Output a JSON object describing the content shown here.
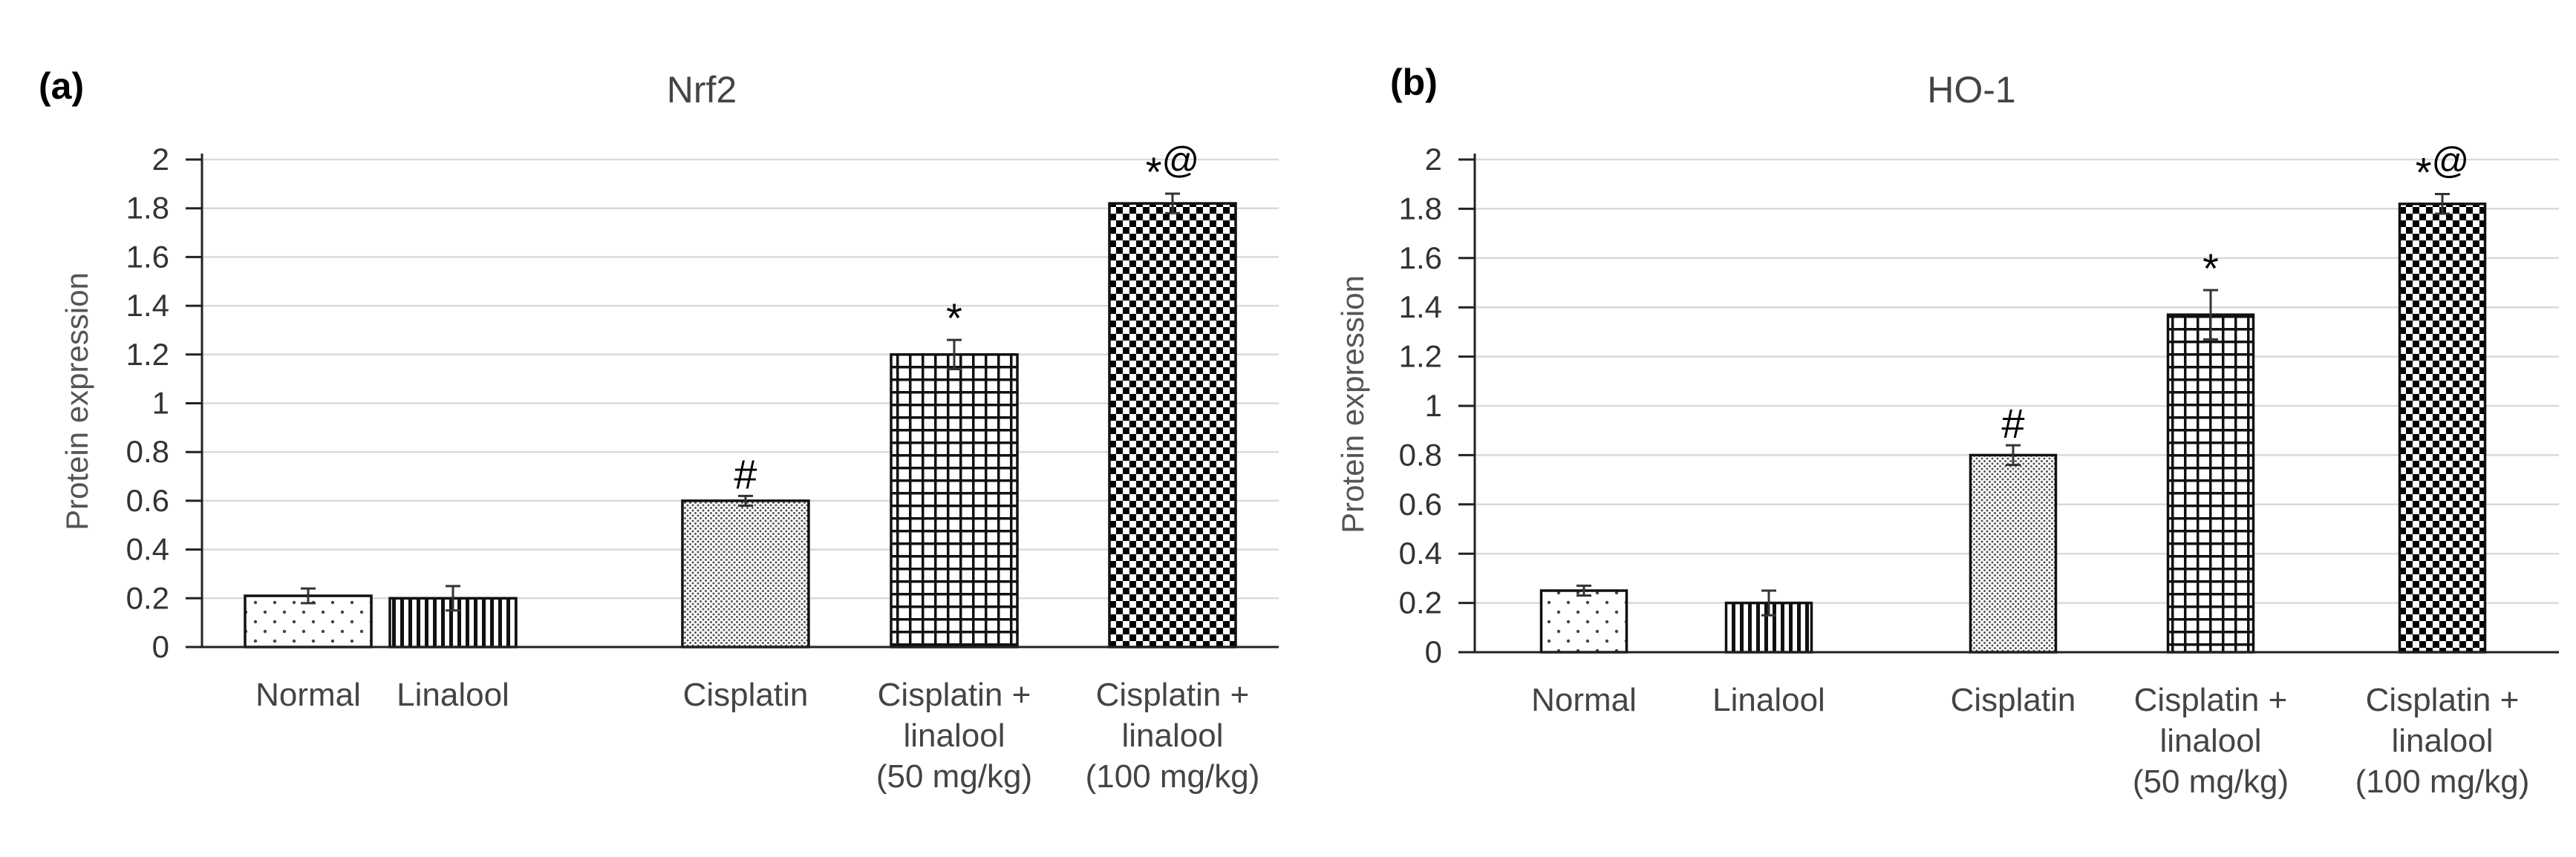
{
  "figure": {
    "panels": [
      {
        "label": "(a)"
      },
      {
        "label": "(b)"
      }
    ]
  },
  "chart_data": [
    {
      "type": "bar",
      "title": "Nrf2",
      "xlabel": "",
      "ylabel": "Protein expression",
      "ylim": [
        0,
        2
      ],
      "yticks": [
        "0",
        "0.2",
        "0.4",
        "0.6",
        "0.8",
        "1",
        "1.2",
        "1.4",
        "1.6",
        "1.8",
        "2"
      ],
      "grid": true,
      "categories": [
        [
          "Normal"
        ],
        [
          "Linalool"
        ],
        [
          "Cisplatin"
        ],
        [
          "Cisplatin +",
          "linalool",
          "(50 mg/kg)"
        ],
        [
          "Cisplatin +",
          "linalool",
          "(100 mg/kg)"
        ]
      ],
      "values": [
        0.21,
        0.2,
        0.6,
        1.2,
        1.82
      ],
      "errors": [
        0.03,
        0.05,
        0.02,
        0.06,
        0.04
      ],
      "patterns": [
        "dots-sparse",
        "vertical-lines",
        "dots-dense",
        "grid",
        "checker"
      ],
      "annotations": [
        {
          "bar": 2,
          "marks": [
            {
              "text": "#",
              "sup": false
            }
          ]
        },
        {
          "bar": 3,
          "marks": [
            {
              "text": "*",
              "sup": false
            }
          ]
        },
        {
          "bar": 4,
          "marks": [
            {
              "text": "*",
              "sup": false
            },
            {
              "text": "@",
              "sup": true
            }
          ]
        }
      ]
    },
    {
      "type": "bar",
      "title": "HO-1",
      "xlabel": "",
      "ylabel": "Protein expression",
      "ylim": [
        0,
        2
      ],
      "yticks": [
        "0",
        "0.2",
        "0.4",
        "0.6",
        "0.8",
        "1",
        "1.2",
        "1.4",
        "1.6",
        "1.8",
        "2"
      ],
      "grid": true,
      "categories": [
        [
          "Normal"
        ],
        [
          "Linalool"
        ],
        [
          "Cisplatin"
        ],
        [
          "Cisplatin +",
          "linalool",
          "(50 mg/kg)"
        ],
        [
          "Cisplatin +",
          "linalool",
          "(100 mg/kg)"
        ]
      ],
      "values": [
        0.25,
        0.2,
        0.8,
        1.37,
        1.82
      ],
      "errors": [
        0.02,
        0.05,
        0.04,
        0.1,
        0.04
      ],
      "patterns": [
        "dots-sparse",
        "vertical-lines",
        "dots-dense",
        "grid",
        "checker"
      ],
      "annotations": [
        {
          "bar": 2,
          "marks": [
            {
              "text": "#",
              "sup": false
            }
          ]
        },
        {
          "bar": 3,
          "marks": [
            {
              "text": "*",
              "sup": false
            }
          ]
        },
        {
          "bar": 4,
          "marks": [
            {
              "text": "*",
              "sup": false
            },
            {
              "text": "@",
              "sup": true
            }
          ]
        }
      ]
    }
  ]
}
